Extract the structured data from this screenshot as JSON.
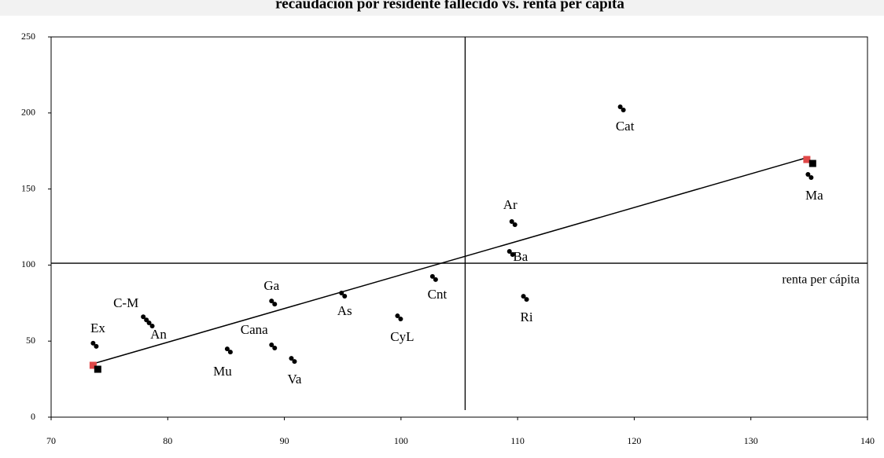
{
  "chart_data": {
    "type": "scatter",
    "title": "recaudación por residente fallecido vs. renta per cápita",
    "xlim": [
      70,
      140
    ],
    "xticks": [
      70,
      80,
      90,
      100,
      110,
      120,
      130,
      140
    ],
    "ylim": [
      0,
      250
    ],
    "yticks": [
      0,
      50,
      100,
      150,
      200,
      250
    ],
    "series": [
      {
        "color": "#000000",
        "marker": "circle",
        "labels": [
          "Ex",
          "C-M",
          "An",
          "Mu",
          "Cana",
          "Ga",
          "Va",
          "As",
          "CyL",
          "Cnt",
          "Ba",
          "Ar",
          "Ri",
          "Cat",
          "Ma"
        ],
        "x": [
          73.6,
          77.9,
          78.4,
          85.1,
          88.9,
          88.9,
          90.6,
          94.9,
          99.7,
          102.7,
          109.3,
          109.5,
          110.5,
          118.8,
          134.9
        ],
        "values": [
          48.6,
          66.0,
          62.0,
          44.9,
          47.5,
          76.4,
          38.7,
          81.6,
          66.6,
          92.5,
          109.0,
          128.6,
          79.5,
          204.0,
          159.6
        ]
      },
      {
        "color": "#e04848",
        "marker": "square",
        "x": [
          73.6,
          134.8
        ],
        "values": [
          34.1,
          169.4
        ]
      },
      {
        "color": "#000000",
        "marker": "square",
        "x": [
          74.0,
          135.3
        ],
        "values": [
          31.5,
          166.8
        ]
      }
    ],
    "trend_line": {
      "color": "#000000",
      "x": [
        73.6,
        134.7
      ],
      "values": [
        35.1,
        170.4
      ]
    },
    "reference_lines": {
      "x": 105.5,
      "y": 101.2,
      "y_label": "renta per cápita"
    }
  }
}
